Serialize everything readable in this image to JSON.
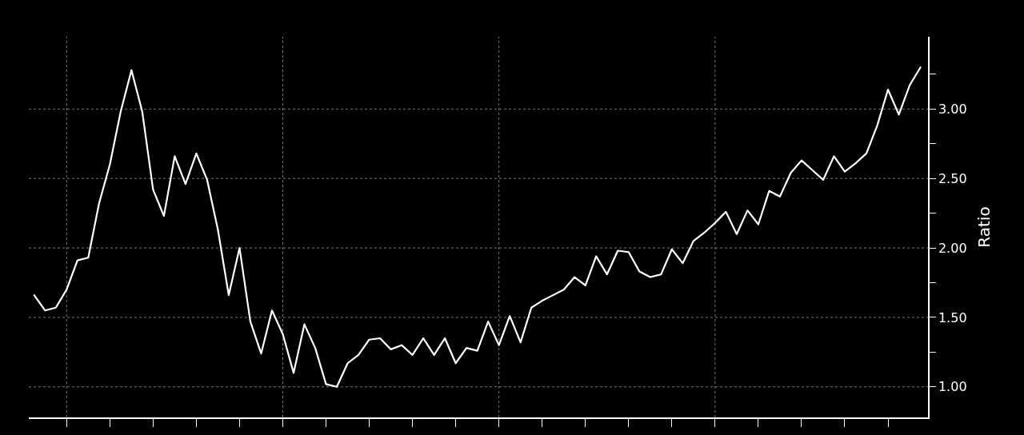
{
  "chart_data": {
    "type": "line",
    "ylabel": "Ratio",
    "categories": [
      null,
      null,
      null,
      null,
      null,
      null,
      null,
      null,
      null,
      null,
      null,
      null,
      null,
      null,
      null,
      null,
      null,
      null,
      null,
      null,
      null,
      null,
      null,
      null,
      null,
      null,
      null,
      null,
      null,
      null,
      null,
      null,
      null,
      null,
      null,
      null,
      null,
      null,
      null,
      null,
      null,
      null,
      null,
      null,
      null,
      null,
      null,
      null,
      null,
      null,
      null,
      null,
      null,
      null,
      null,
      null,
      null,
      null,
      null,
      null,
      null,
      null,
      null,
      null,
      null,
      null,
      null,
      null,
      null,
      null,
      null,
      null,
      null,
      null,
      null,
      null,
      null,
      null,
      null,
      null,
      null,
      null,
      null
    ],
    "series": [
      {
        "color": "#ffffff",
        "values": [
          1.66,
          1.55,
          1.57,
          1.7,
          1.91,
          1.93,
          2.32,
          2.6,
          2.98,
          3.28,
          2.98,
          2.42,
          2.23,
          2.66,
          2.46,
          2.68,
          2.49,
          2.13,
          1.66,
          2.0,
          1.47,
          1.24,
          1.55,
          1.38,
          1.1,
          1.45,
          1.28,
          1.02,
          1.0,
          1.17,
          1.23,
          1.34,
          1.35,
          1.27,
          1.3,
          1.23,
          1.35,
          1.23,
          1.35,
          1.17,
          1.28,
          1.26,
          1.47,
          1.3,
          1.51,
          1.32,
          1.57,
          1.62,
          1.66,
          1.7,
          1.79,
          1.73,
          1.94,
          1.81,
          1.98,
          1.97,
          1.83,
          1.79,
          1.81,
          1.99,
          1.89,
          2.05,
          2.11,
          2.18,
          2.26,
          2.1,
          2.27,
          2.17,
          2.41,
          2.37,
          2.54,
          2.63,
          2.56,
          2.49,
          2.66,
          2.55,
          2.61,
          2.68,
          2.88,
          3.14,
          2.96,
          3.17,
          3.3
        ]
      }
    ],
    "ylim": [
      0.78,
      3.52
    ],
    "yticks": [
      {
        "value": 1,
        "label": "1.00"
      },
      {
        "value": 1.25,
        "label": null
      },
      {
        "value": 1.5,
        "label": "1.50"
      },
      {
        "value": 1.75,
        "label": null
      },
      {
        "value": 2,
        "label": "2.00"
      },
      {
        "value": 2.25,
        "label": null
      },
      {
        "value": 2.5,
        "label": "2.50"
      },
      {
        "value": 2.75,
        "label": null
      },
      {
        "value": 3,
        "label": "3.00"
      },
      {
        "value": 3.25,
        "label": null
      }
    ],
    "tick_labels": "y",
    "grid": true,
    "marker": "none",
    "line_style": "solid"
  }
}
